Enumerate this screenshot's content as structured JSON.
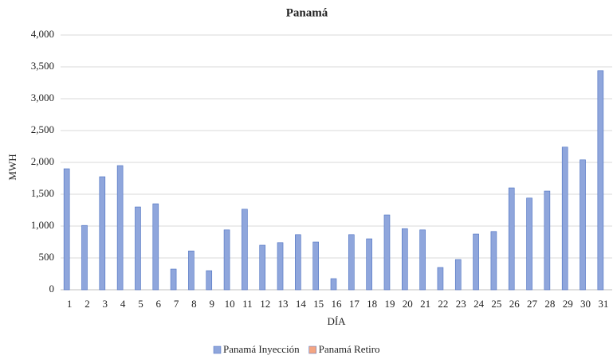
{
  "chart_data": {
    "type": "bar",
    "title": "Panamá",
    "x_label": "DÍA",
    "y_label": "MWH",
    "categories": [
      "1",
      "2",
      "3",
      "4",
      "5",
      "6",
      "7",
      "8",
      "9",
      "10",
      "11",
      "12",
      "13",
      "14",
      "15",
      "16",
      "17",
      "18",
      "19",
      "20",
      "21",
      "22",
      "23",
      "24",
      "25",
      "26",
      "27",
      "28",
      "29",
      "30",
      "31"
    ],
    "series": [
      {
        "name": "Panamá Inyección",
        "color": "#8fa6dc",
        "values": [
          1900,
          1010,
          1775,
          1950,
          1300,
          1350,
          325,
          610,
          300,
          940,
          1265,
          700,
          740,
          865,
          750,
          175,
          865,
          800,
          1175,
          960,
          940,
          350,
          475,
          875,
          915,
          1600,
          1440,
          1550,
          2240,
          2040,
          3440
        ]
      },
      {
        "name": "Panamá Retiro",
        "color": "#f4a582",
        "values": [
          0,
          0,
          0,
          0,
          0,
          0,
          0,
          0,
          0,
          0,
          0,
          0,
          0,
          0,
          0,
          0,
          0,
          0,
          0,
          0,
          0,
          0,
          0,
          0,
          0,
          0,
          0,
          0,
          0,
          0,
          0
        ]
      }
    ],
    "ylim": [
      0,
      4000
    ],
    "yticks": [
      0,
      500,
      {
        "value": 1000,
        "label": "1,000"
      },
      {
        "value": 1500,
        "label": "1,500"
      },
      {
        "value": 2000,
        "label": "2,000"
      },
      {
        "value": 2500,
        "label": "2,500"
      },
      {
        "value": 3000,
        "label": "3,000"
      },
      {
        "value": 3500,
        "label": "3,500"
      },
      {
        "value": 4000,
        "label": "4,000"
      }
    ],
    "grid": true,
    "legend": "bottom"
  }
}
